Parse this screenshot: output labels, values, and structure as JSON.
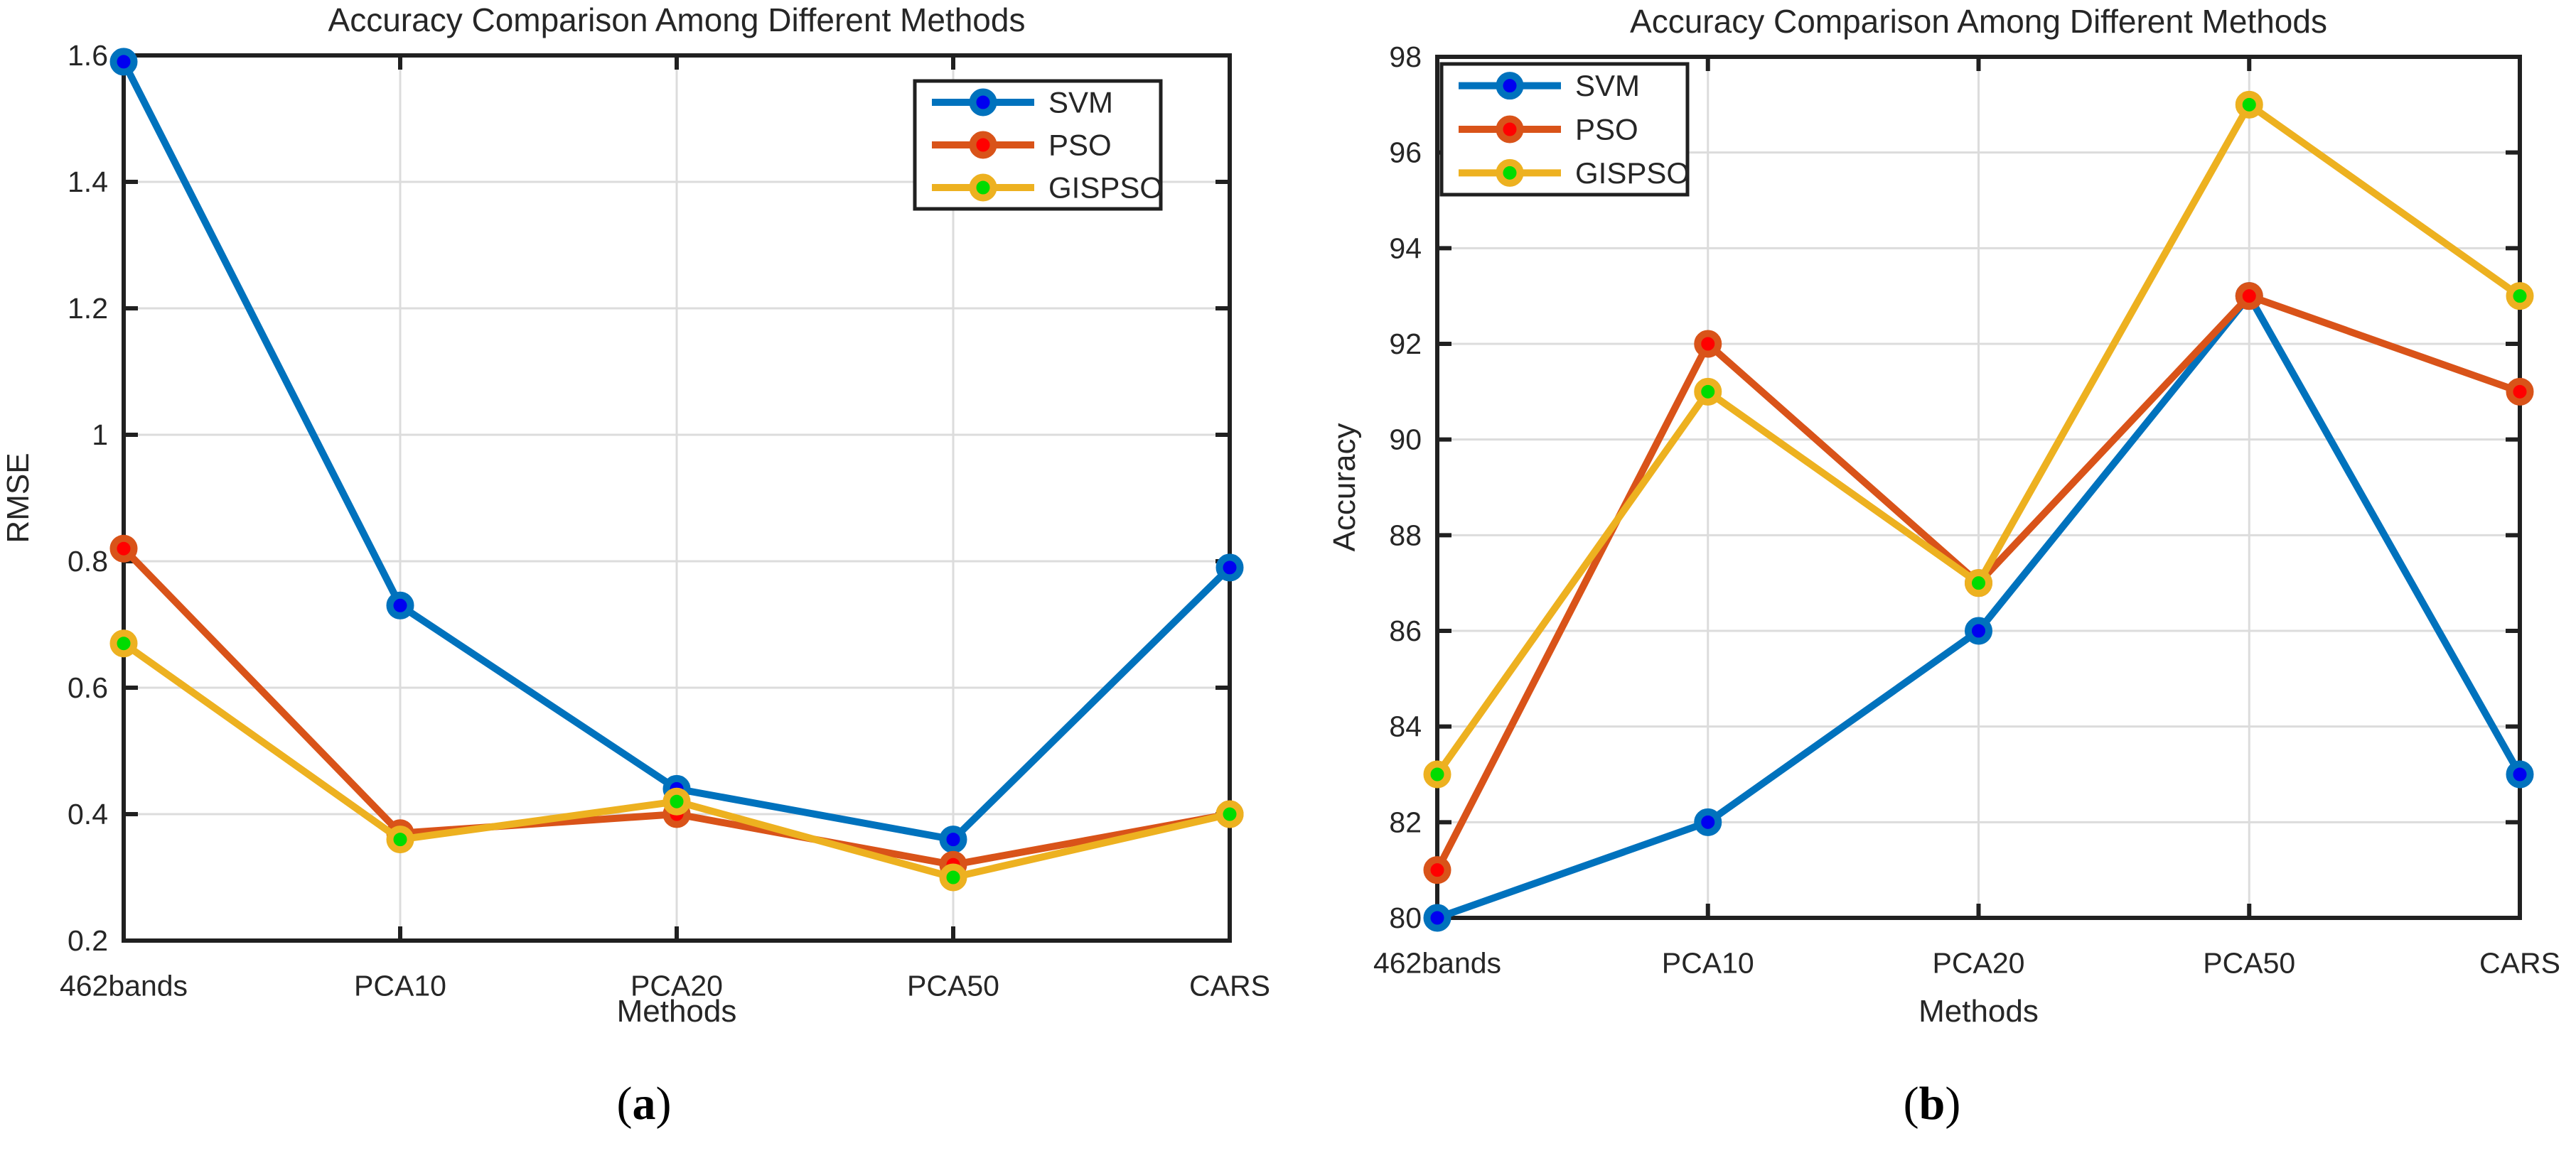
{
  "figure": {
    "captions": [
      {
        "open": "(",
        "letter": "a",
        "close": ")"
      },
      {
        "open": "(",
        "letter": "b",
        "close": ")"
      }
    ]
  },
  "palette": {
    "background": "#ffffff",
    "axis": "#202020",
    "grid": "#dcdcdc",
    "text": "#262626",
    "legend_bg": "#ffffff",
    "legend_border": "#202020"
  },
  "chart_data": [
    {
      "id": "rmse",
      "type": "line",
      "title": "Accuracy Comparison Among Different Methods",
      "xlabel": "Methods",
      "ylabel": "RMSE",
      "categories": [
        "462bands",
        "PCA10",
        "PCA20",
        "PCA50",
        "CARS"
      ],
      "ylim": [
        0.2,
        1.6
      ],
      "yticks": [
        0.2,
        0.4,
        0.6,
        0.8,
        1,
        1.2,
        1.4,
        1.6
      ],
      "ytick_labels": [
        "0.2",
        "0.4",
        "0.6",
        "0.8",
        "1",
        "1.2",
        "1.4",
        "1.6"
      ],
      "grid": true,
      "legend_position": "top-right",
      "series": [
        {
          "name": "SVM",
          "values": [
            1.59,
            0.73,
            0.44,
            0.36,
            0.79
          ],
          "line_color": "#0072BD",
          "marker_color": "#0000F0"
        },
        {
          "name": "PSO",
          "values": [
            0.82,
            0.37,
            0.4,
            0.32,
            0.4
          ],
          "line_color": "#D95319",
          "marker_color": "#FF0000"
        },
        {
          "name": "GISPSO",
          "values": [
            0.67,
            0.36,
            0.42,
            0.3,
            0.4
          ],
          "line_color": "#EDB120",
          "marker_color": "#00DC00"
        }
      ]
    },
    {
      "id": "accuracy",
      "type": "line",
      "title": "Accuracy Comparison Among Different Methods",
      "xlabel": "Methods",
      "ylabel": "Accuracy",
      "categories": [
        "462bands",
        "PCA10",
        "PCA20",
        "PCA50",
        "CARS"
      ],
      "ylim": [
        80,
        98
      ],
      "yticks": [
        80,
        82,
        84,
        86,
        88,
        90,
        92,
        94,
        96,
        98
      ],
      "ytick_labels": [
        "80",
        "82",
        "84",
        "86",
        "88",
        "90",
        "92",
        "94",
        "96",
        "98"
      ],
      "grid": true,
      "legend_position": "top-left",
      "series": [
        {
          "name": "SVM",
          "values": [
            80,
            82,
            86,
            93,
            83
          ],
          "line_color": "#0072BD",
          "marker_color": "#0000F0"
        },
        {
          "name": "PSO",
          "values": [
            81,
            92,
            87,
            93,
            91
          ],
          "line_color": "#D95319",
          "marker_color": "#FF0000"
        },
        {
          "name": "GISPSO",
          "values": [
            83,
            91,
            87,
            97,
            93
          ],
          "line_color": "#EDB120",
          "marker_color": "#00DC00"
        }
      ]
    }
  ]
}
